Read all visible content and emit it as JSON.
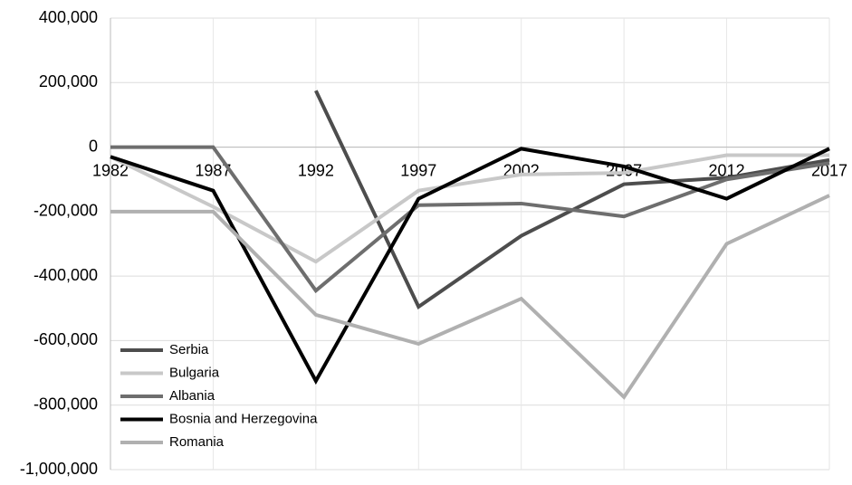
{
  "chart_data": {
    "type": "line",
    "categories": [
      "1982",
      "1987",
      "1992",
      "1997",
      "2002",
      "2007",
      "2012",
      "2017"
    ],
    "series": [
      {
        "name": "Serbia",
        "color": "#4d4d4d",
        "values": [
          null,
          null,
          175000,
          -495000,
          -275000,
          -115000,
          -95000,
          -40000
        ]
      },
      {
        "name": "Bulgaria",
        "color": "#c8c8c8",
        "values": [
          -30000,
          -185000,
          -355000,
          -135000,
          -85000,
          -80000,
          -25000,
          -25000
        ]
      },
      {
        "name": "Albania",
        "color": "#6e6e6e",
        "values": [
          0,
          0,
          -445000,
          -180000,
          -175000,
          -215000,
          -100000,
          -50000
        ]
      },
      {
        "name": "Bosnia and Herzegovina",
        "color": "#000000",
        "values": [
          -30000,
          -135000,
          -725000,
          -160000,
          -5000,
          -60000,
          -160000,
          -5000
        ]
      },
      {
        "name": "Romania",
        "color": "#b0b0b0",
        "values": [
          -200000,
          -200000,
          -520000,
          -610000,
          -470000,
          -775000,
          -300000,
          -150000
        ]
      }
    ],
    "ylim": [
      -1000000,
      400000
    ],
    "yticks": [
      {
        "value": -1000000,
        "label": "-1,000,000"
      },
      {
        "value": -800000,
        "label": "-800,000"
      },
      {
        "value": -600000,
        "label": "-600,000"
      },
      {
        "value": -400000,
        "label": "-400,000"
      },
      {
        "value": -200000,
        "label": "-200,000"
      },
      0,
      {
        "value": 200000,
        "label": "200,000"
      },
      {
        "value": 400000,
        "label": "400,000"
      }
    ],
    "grid": true,
    "legend": "lower left"
  }
}
